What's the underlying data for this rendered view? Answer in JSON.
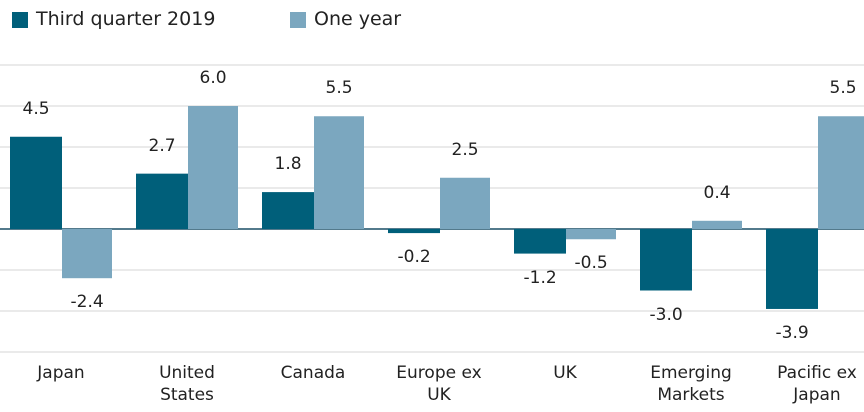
{
  "chart_data": {
    "type": "bar",
    "categories": [
      "Japan",
      "United States",
      "Canada",
      "Europe ex UK",
      "UK",
      "Emerging Markets",
      "Pacific ex Japan"
    ],
    "series": [
      {
        "name": "Third quarter 2019",
        "color": "#005f7a",
        "values": [
          4.5,
          2.7,
          1.8,
          -0.2,
          -1.2,
          -3.0,
          -3.9
        ],
        "value_labels": [
          "4.5",
          "2.7",
          "1.8",
          "-0.2",
          "-1.2",
          "-3.0",
          "-3.9"
        ]
      },
      {
        "name": "One year",
        "color": "#7ba7bf",
        "values": [
          -2.4,
          6.0,
          5.5,
          2.5,
          -0.5,
          0.4,
          5.5
        ],
        "value_labels": [
          "-2.4",
          "6.0",
          "5.5",
          "2.5",
          "-0.5",
          "0.4",
          "5.5"
        ]
      }
    ],
    "ylim": [
      -6,
      8
    ],
    "yticks": [
      -6,
      -4,
      -2,
      0,
      2,
      4,
      6,
      8
    ],
    "grid": true,
    "legend": "top-left"
  }
}
